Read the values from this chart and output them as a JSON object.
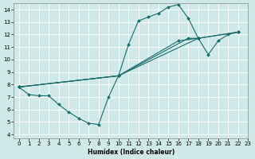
{
  "xlabel": "Humidex (Indice chaleur)",
  "xlim": [
    -0.5,
    22.5
  ],
  "ylim": [
    3.7,
    14.5
  ],
  "xticks": [
    0,
    1,
    2,
    3,
    4,
    5,
    6,
    7,
    8,
    9,
    10,
    11,
    12,
    13,
    14,
    15,
    16,
    17,
    18,
    19,
    20,
    21,
    22,
    23
  ],
  "yticks": [
    4,
    5,
    6,
    7,
    8,
    9,
    10,
    11,
    12,
    13,
    14
  ],
  "bg_color": "#cfe9e9",
  "line_color": "#1a6b6b",
  "grid_color": "#ffffff",
  "line1_x": [
    0,
    1,
    2,
    3,
    4,
    5,
    6,
    7,
    8,
    9,
    10,
    11,
    12,
    13,
    14,
    15,
    16,
    17,
    18
  ],
  "line1_y": [
    7.8,
    7.2,
    7.1,
    7.1,
    6.4,
    5.8,
    5.3,
    4.9,
    4.8,
    7.0,
    8.7,
    11.2,
    13.1,
    13.4,
    13.7,
    14.2,
    14.4,
    13.3,
    11.7
  ],
  "line2_x": [
    0,
    10,
    18,
    19,
    20,
    21,
    22
  ],
  "line2_y": [
    7.8,
    8.7,
    11.7,
    10.4,
    11.5,
    12.0,
    12.2
  ],
  "line3_x": [
    0,
    10,
    17,
    18,
    22
  ],
  "line3_y": [
    7.8,
    8.7,
    11.7,
    11.7,
    12.2
  ],
  "line4_x": [
    0,
    10,
    16,
    18,
    22
  ],
  "line4_y": [
    7.8,
    8.7,
    11.5,
    11.7,
    12.2
  ]
}
